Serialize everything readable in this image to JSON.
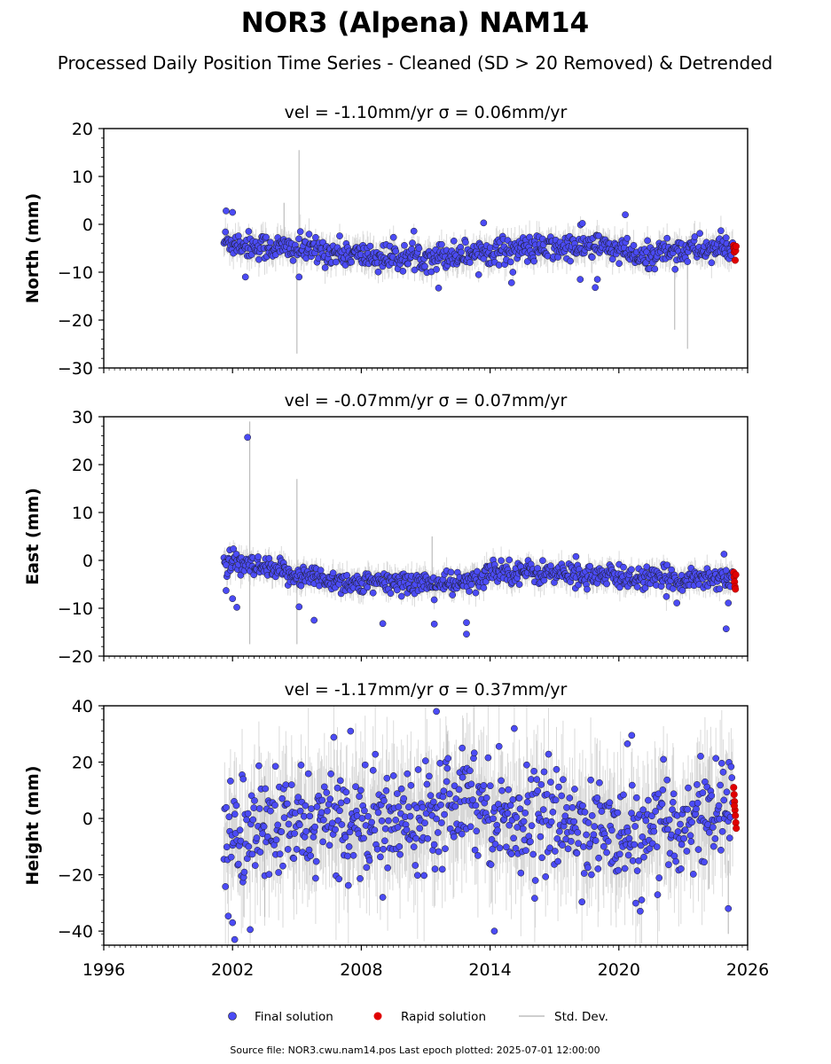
{
  "chart_data": {
    "type": "scatter",
    "title": "NOR3 (Alpena) NAM14",
    "subtitle": "Processed Daily Position Time Series - Cleaned (SD > 20 Removed) & Detrended",
    "x_ticks": [
      "1996",
      "2002",
      "2008",
      "2014",
      "2020",
      "2026"
    ],
    "xlim": [
      1996,
      2026
    ],
    "grid": false,
    "legend_position": "bottom-center",
    "panels": [
      {
        "ylabel": "North (mm)",
        "header": "vel = -1.10mm/yr   σ = 0.06mm/yr",
        "ylim": [
          -30,
          20
        ],
        "y_ticks": [
          20,
          10,
          0,
          -10,
          -20,
          -30
        ],
        "start": 2001.6,
        "baseline": [
          [
            2001.6,
            -3.5
          ],
          [
            2003,
            -4.5
          ],
          [
            2006,
            -5.5
          ],
          [
            2009,
            -7.0
          ],
          [
            2012,
            -6.5
          ],
          [
            2014,
            -5.5
          ],
          [
            2017,
            -5.0
          ],
          [
            2019,
            -4.5
          ],
          [
            2020.5,
            -6.0
          ],
          [
            2021,
            -7.5
          ],
          [
            2022,
            -5.5
          ],
          [
            2025.2,
            -5.0
          ]
        ],
        "scatter_sd": 1.4,
        "outliers": [
          [
            2001.7,
            2.8
          ],
          [
            2002.0,
            2.5
          ],
          [
            2002.6,
            -11.0
          ],
          [
            2005.1,
            -11.0
          ],
          [
            2011.6,
            -13.3
          ],
          [
            2013.7,
            0.3
          ],
          [
            2015.0,
            -12.2
          ],
          [
            2018.3,
            0.2
          ],
          [
            2018.2,
            -11.5
          ],
          [
            2018.9,
            -13.2
          ],
          [
            2020.3,
            2.0
          ],
          [
            2019.0,
            -11.5
          ]
        ],
        "rapid": [
          [
            2025.35,
            -4.4
          ],
          [
            2025.36,
            -5.0
          ],
          [
            2025.38,
            -5.8
          ],
          [
            2025.4,
            -4.8
          ],
          [
            2025.42,
            -7.5
          ],
          [
            2025.44,
            -5.5
          ],
          [
            2025.46,
            -4.6
          ]
        ],
        "sd_spikes": [
          [
            2005.0,
            -27.0,
            -4.0
          ],
          [
            2005.1,
            -5,
            15.5
          ],
          [
            2023.2,
            -26.0,
            -6.0
          ],
          [
            2022.6,
            -22.0,
            -5.0
          ],
          [
            2004.4,
            -5,
            4.5
          ]
        ]
      },
      {
        "ylabel": "East (mm)",
        "header": "vel = -0.07mm/yr   σ = 0.07mm/yr",
        "ylim": [
          -20,
          30
        ],
        "y_ticks": [
          30,
          20,
          10,
          0,
          -10,
          -20
        ],
        "start": 2001.6,
        "baseline": [
          [
            2001.6,
            -0.5
          ],
          [
            2003,
            -1.5
          ],
          [
            2005,
            -3.0
          ],
          [
            2008,
            -5.0
          ],
          [
            2010,
            -4.5
          ],
          [
            2012,
            -5.0
          ],
          [
            2013.5,
            -4.5
          ],
          [
            2014,
            -2.0
          ],
          [
            2016,
            -2.5
          ],
          [
            2018,
            -3.0
          ],
          [
            2020,
            -3.5
          ],
          [
            2022,
            -4.0
          ],
          [
            2025.2,
            -3.5
          ]
        ],
        "scatter_sd": 1.2,
        "outliers": [
          [
            2002.7,
            25.7
          ],
          [
            2001.7,
            -6.3
          ],
          [
            2002.0,
            -8.0
          ],
          [
            2002.2,
            -9.8
          ],
          [
            2005.1,
            -9.7
          ],
          [
            2005.8,
            -12.5
          ],
          [
            2009.0,
            -13.2
          ],
          [
            2011.4,
            -13.3
          ],
          [
            2012.9,
            -15.4
          ],
          [
            2012.9,
            -13.0
          ],
          [
            2018.0,
            0.8
          ],
          [
            2024.9,
            1.3
          ],
          [
            2025.0,
            -14.3
          ],
          [
            2025.1,
            -8.9
          ],
          [
            2022.7,
            -8.9
          ]
        ],
        "rapid": [
          [
            2025.35,
            -2.5
          ],
          [
            2025.37,
            -3.5
          ],
          [
            2025.39,
            -4.5
          ],
          [
            2025.41,
            -5.5
          ],
          [
            2025.43,
            -6.0
          ],
          [
            2025.45,
            -3.0
          ]
        ],
        "sd_spikes": [
          [
            2002.8,
            -17.5,
            29.0
          ],
          [
            2005.0,
            -17.5,
            17.0
          ],
          [
            2011.3,
            -5,
            5.0
          ]
        ]
      },
      {
        "ylabel": "Height (mm)",
        "header": "vel = -1.17mm/yr   σ = 0.37mm/yr",
        "ylim": [
          -45,
          40
        ],
        "y_ticks": [
          40,
          20,
          0,
          -20,
          -40
        ],
        "start": 2001.6,
        "baseline": [
          [
            2001.6,
            -10
          ],
          [
            2003,
            -5
          ],
          [
            2005,
            -3
          ],
          [
            2007,
            0
          ],
          [
            2009,
            -2
          ],
          [
            2011,
            3
          ],
          [
            2013,
            10
          ],
          [
            2014,
            3
          ],
          [
            2016,
            0
          ],
          [
            2018,
            -2
          ],
          [
            2020,
            -6
          ],
          [
            2021,
            -10
          ],
          [
            2022,
            -5
          ],
          [
            2024,
            2
          ],
          [
            2025.2,
            5
          ]
        ],
        "scatter_sd": 9.0,
        "outliers": [
          [
            2002.1,
            -43.0
          ],
          [
            2002.0,
            -37.0
          ],
          [
            2002.5,
            14.0
          ],
          [
            2004.0,
            18.5
          ],
          [
            2007.5,
            31.0
          ],
          [
            2011.5,
            38.0
          ],
          [
            2012.7,
            25.0
          ],
          [
            2014.2,
            -40.0
          ],
          [
            2020.4,
            26.5
          ],
          [
            2020.6,
            29.5
          ],
          [
            2025.1,
            -32.0
          ],
          [
            2009.0,
            -28.0
          ]
        ],
        "rapid": [
          [
            2025.35,
            11.0
          ],
          [
            2025.37,
            8.5
          ],
          [
            2025.39,
            6.0
          ],
          [
            2025.41,
            3.0
          ],
          [
            2025.43,
            1.0
          ],
          [
            2025.45,
            -1.5
          ],
          [
            2025.47,
            -3.5
          ],
          [
            2025.38,
            4.5
          ]
        ],
        "sd_spikes": [
          [
            2003.5,
            -35,
            15
          ],
          [
            2012.0,
            -5,
            30
          ],
          [
            2024.2,
            -25,
            22
          ],
          [
            2025.1,
            -41,
            -15
          ]
        ]
      }
    ],
    "legend": [
      "Final solution",
      "Rapid solution",
      "Std. Dev."
    ],
    "footer": "Source file: NOR3.cwu.nam14.pos  Last epoch plotted: 2025-07-01 12:00:00",
    "colors": {
      "final": "#4b4bf5",
      "final_edge": "#1a1a1a",
      "rapid": "#e00000",
      "sd": "#bdbdbd"
    }
  }
}
